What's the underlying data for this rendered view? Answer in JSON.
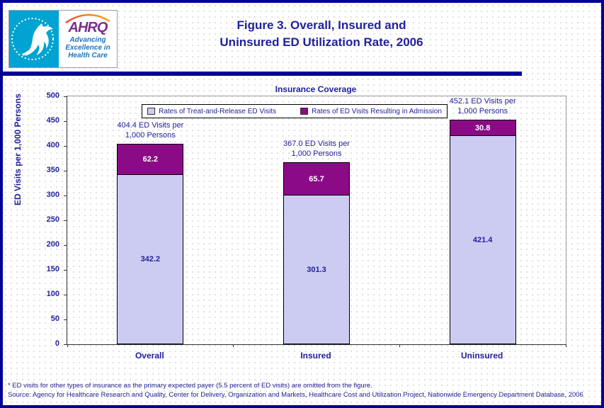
{
  "header": {
    "title_line1": "Figure 3. Overall, Insured and",
    "title_line2": "Uninsured ED Utilization Rate, 2006",
    "logo": {
      "org_abbr": "AHRQ",
      "tagline_line1": "Advancing",
      "tagline_line2": "Excellence in",
      "tagline_line3": "Health Care"
    }
  },
  "chart": {
    "title": "Insurance Coverage",
    "y_axis_title": "ED Visits per 1,000 Persons",
    "bars": [
      {
        "category": "Overall",
        "annotation_line1": "404.4 ED Visits per",
        "annotation_line2": "1,000 Persons",
        "treat_release_label": "342.2",
        "admission_label": "62.2"
      },
      {
        "category": "Insured",
        "annotation_line1": "367.0 ED Visits per",
        "annotation_line2": "1,000 Persons",
        "treat_release_label": "301.3",
        "admission_label": "65.7"
      },
      {
        "category": "Uninsured",
        "annotation_line1": "452.1 ED Visits per",
        "annotation_line2": "1,000 Persons",
        "treat_release_label": "421.4",
        "admission_label": "30.8"
      }
    ]
  },
  "chart_data": {
    "type": "bar",
    "stacked": true,
    "title": "Insurance Coverage",
    "categories": [
      "Overall",
      "Insured",
      "Uninsured"
    ],
    "series": [
      {
        "name": "Rates of Treat-and-Release ED Visits",
        "values": [
          342.2,
          301.3,
          421.4
        ],
        "color": "#CCCCF2"
      },
      {
        "name": "Rates of ED Visits Resulting in Admission",
        "values": [
          62.2,
          65.7,
          30.8
        ],
        "color": "#8B0A85"
      }
    ],
    "totals": [
      404.4,
      367.0,
      452.1
    ],
    "total_annotations": [
      "404.4 ED Visits per 1,000 Persons",
      "367.0 ED Visits per 1,000 Persons",
      "452.1 ED Visits per 1,000 Persons"
    ],
    "xlabel": "",
    "ylabel": "ED Visits per 1,000 Persons",
    "ylim": [
      0,
      500
    ],
    "y_ticks": [
      0,
      50,
      100,
      150,
      200,
      250,
      300,
      350,
      400,
      450,
      500
    ],
    "grid": false,
    "legend_position": "top-inside"
  },
  "footer": {
    "note": "* ED visits for other types of insurance as the primary expected payer (5.5 percent of ED visits) are omitted from the figure.",
    "source": "Source: Agency for Healthcare Research and Quality, Center for Delivery, Organization and Markets, Healthcare Cost and Utilization Project, Nationwide Emergency Department Database, 2006"
  },
  "colors": {
    "frame_navy": "#000099",
    "text_navy": "#21219B",
    "bar_light": "#CCCCF2",
    "bar_dark": "#8B0A85",
    "logo_cyan": "#00A3D1",
    "ahrq_purple": "#7B2E8E",
    "tagline_blue": "#1B75BC"
  }
}
